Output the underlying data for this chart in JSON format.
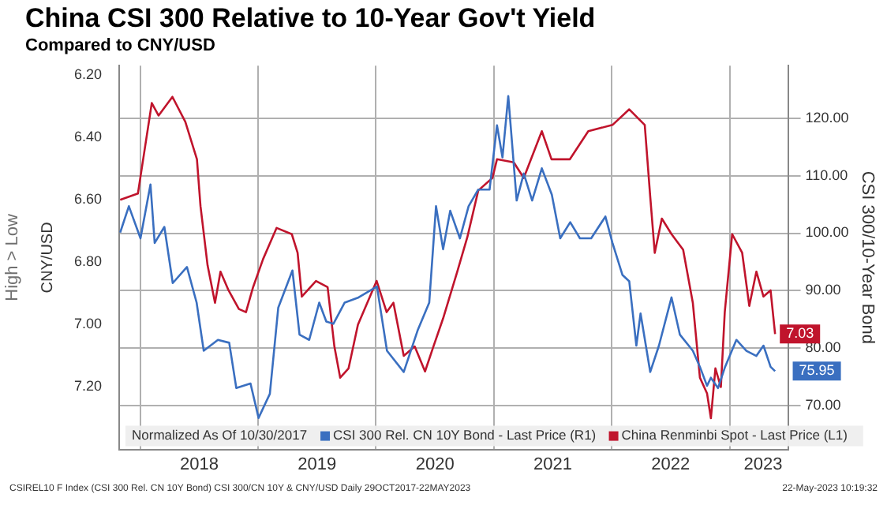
{
  "chart_data": {
    "type": "line",
    "title": "China CSI 300 Relative to 10-Year Gov't Yield",
    "subtitle": "Compared to CNY/USD",
    "ylabel": "CNY/USD",
    "y2label": "CSI 300/10-Year Bond",
    "legend_title": "Normalized As Of 10/30/2017",
    "legend": "bottom",
    "grid": true,
    "xlim": [
      "2017-10-27",
      "2023-07-01"
    ],
    "xticks": [
      {
        "value": "2018-01-01",
        "label": null
      },
      {
        "value": "2018-07-02",
        "label": "2018"
      },
      {
        "value": "2019-01-01",
        "label": null
      },
      {
        "value": "2019-07-02",
        "label": "2019"
      },
      {
        "value": "2020-01-01",
        "label": null
      },
      {
        "value": "2020-07-02",
        "label": "2020"
      },
      {
        "value": "2021-01-01",
        "label": null
      },
      {
        "value": "2021-07-02",
        "label": "2021"
      },
      {
        "value": "2022-01-01",
        "label": null
      },
      {
        "value": "2022-07-02",
        "label": "2022"
      },
      {
        "value": "2023-01-01",
        "label": null
      },
      {
        "value": "2023-04-15",
        "label": "2023"
      }
    ],
    "ylim": [
      7.4,
      6.17
    ],
    "yticks": [
      {
        "value": 6.2,
        "label": "6.20"
      },
      {
        "value": 6.4,
        "label": "6.40"
      },
      {
        "value": 6.6,
        "label": "6.60"
      },
      {
        "value": 6.8,
        "label": "6.80"
      },
      {
        "value": 7.0,
        "label": "7.00"
      },
      {
        "value": 7.2,
        "label": "7.20"
      }
    ],
    "y2lim": [
      62.3,
      129.2
    ],
    "y2ticks": [
      {
        "value": 70,
        "label": "70.00"
      },
      {
        "value": 80,
        "label": "80.00"
      },
      {
        "value": 90,
        "label": "90.00"
      },
      {
        "value": 100,
        "label": "100.00"
      },
      {
        "value": 110,
        "label": "110.00"
      },
      {
        "value": 120,
        "label": "120.00"
      }
    ],
    "annotations": [
      "High > Low",
      "CSIREL10 F Index (CSI 300 Rel. CN 10Y Bond) CSI 300/CN 10Y & CNY/USD Daily 29OCT2017-22MAY2023",
      "22-May-2023 10:19:32"
    ],
    "series": [
      {
        "name": "CSI 300 Rel. CN 10Y Bond - Last Price (R1)",
        "color": "#3a6fc0",
        "axis": "y2",
        "x": [
          "2017-10-30",
          "2017-11-26",
          "2018-01-01",
          "2018-02-01",
          "2018-02-14",
          "2018-03-16",
          "2018-04-11",
          "2018-05-25",
          "2018-06-24",
          "2018-07-16",
          "2018-08-29",
          "2018-10-03",
          "2018-10-25",
          "2018-12-08",
          "2019-01-02",
          "2019-02-06",
          "2019-03-04",
          "2019-04-17",
          "2019-05-09",
          "2019-06-08",
          "2019-07-09",
          "2019-07-31",
          "2019-08-22",
          "2019-09-26",
          "2019-11-08",
          "2020-01-04",
          "2020-02-04",
          "2020-03-27",
          "2020-05-10",
          "2020-06-14",
          "2020-07-05",
          "2020-07-27",
          "2020-08-18",
          "2020-09-17",
          "2020-10-14",
          "2020-11-13",
          "2020-12-18",
          "2021-01-10",
          "2021-01-27",
          "2021-02-14",
          "2021-03-12",
          "2021-04-03",
          "2021-04-29",
          "2021-05-29",
          "2021-06-29",
          "2021-07-25",
          "2021-08-25",
          "2021-09-24",
          "2021-10-29",
          "2021-12-12",
          "2022-01-03",
          "2022-02-03",
          "2022-02-24",
          "2022-03-18",
          "2022-03-31",
          "2022-04-30",
          "2022-05-27",
          "2022-07-05",
          "2022-07-31",
          "2022-09-09",
          "2022-10-01",
          "2022-10-23",
          "2022-11-04",
          "2022-11-26",
          "2022-12-18",
          "2023-01-22",
          "2023-02-22",
          "2023-03-25",
          "2023-04-16",
          "2023-05-08",
          "2023-05-22"
        ],
        "values": [
          100.1,
          104.7,
          99.1,
          108.5,
          98.3,
          101.1,
          91.3,
          94.1,
          87.9,
          79.5,
          81.4,
          80.9,
          73.0,
          73.8,
          67.8,
          72.0,
          87.0,
          93.5,
          82.3,
          81.4,
          87.9,
          84.6,
          84.2,
          87.9,
          88.8,
          90.7,
          79.5,
          75.8,
          83.2,
          87.9,
          104.7,
          97.2,
          103.9,
          99.1,
          104.7,
          107.6,
          107.6,
          118.8,
          113.2,
          123.9,
          105.7,
          110.4,
          105.7,
          111.3,
          106.7,
          99.1,
          101.9,
          99.1,
          99.1,
          102.9,
          98.3,
          92.7,
          91.6,
          80.4,
          86.0,
          75.8,
          80.4,
          88.8,
          82.3,
          79.5,
          76.7,
          73.4,
          74.8,
          73.0,
          76.7,
          81.4,
          79.5,
          78.6,
          80.4,
          76.7,
          75.95
        ],
        "value_labels": [
          null,
          null,
          null,
          null,
          null,
          null,
          null,
          null,
          null,
          null,
          null,
          null,
          null,
          null,
          null,
          null,
          null,
          null,
          null,
          null,
          null,
          null,
          null,
          null,
          null,
          null,
          null,
          null,
          null,
          null,
          null,
          null,
          null,
          null,
          null,
          null,
          null,
          null,
          null,
          null,
          null,
          null,
          null,
          null,
          null,
          null,
          null,
          null,
          null,
          null,
          null,
          null,
          null,
          null,
          null,
          null,
          null,
          null,
          null,
          null,
          null,
          null,
          null,
          null,
          null,
          null,
          null,
          null,
          null,
          null,
          "75.95"
        ]
      },
      {
        "name": "China Renminbi Spot - Last Price (L1)",
        "color": "#c0142c",
        "x": [
          "2017-10-30",
          "2017-12-24",
          "2018-02-05",
          "2018-02-26",
          "2018-04-10",
          "2018-05-20",
          "2018-06-25",
          "2018-07-06",
          "2018-07-28",
          "2018-08-20",
          "2018-09-06",
          "2018-10-01",
          "2018-11-02",
          "2018-11-24",
          "2018-12-16",
          "2019-01-16",
          "2019-02-06",
          "2019-02-27",
          "2019-04-15",
          "2019-05-03",
          "2019-05-16",
          "2019-06-29",
          "2019-08-04",
          "2019-08-25",
          "2019-09-12",
          "2019-10-08",
          "2019-11-06",
          "2020-01-03",
          "2020-02-03",
          "2020-02-24",
          "2020-03-27",
          "2020-04-30",
          "2020-06-01",
          "2020-06-27",
          "2020-07-27",
          "2020-09-09",
          "2020-10-10",
          "2020-11-13",
          "2020-12-27",
          "2021-01-10",
          "2021-03-03",
          "2021-04-03",
          "2021-05-29",
          "2021-06-28",
          "2021-08-24",
          "2021-10-20",
          "2022-01-03",
          "2022-02-24",
          "2022-04-13",
          "2022-04-30",
          "2022-05-14",
          "2022-06-05",
          "2022-07-05",
          "2022-08-10",
          "2022-09-09",
          "2022-10-01",
          "2022-10-23",
          "2022-11-04",
          "2022-11-18",
          "2022-12-05",
          "2022-12-17",
          "2023-01-09",
          "2023-02-09",
          "2023-03-03",
          "2023-03-25",
          "2023-04-16",
          "2023-05-08",
          "2023-05-22"
        ],
        "values": [
          6.6,
          6.58,
          6.29,
          6.33,
          6.27,
          6.35,
          6.47,
          6.62,
          6.81,
          6.93,
          6.83,
          6.89,
          6.95,
          6.96,
          6.88,
          6.79,
          6.74,
          6.69,
          6.71,
          6.77,
          6.91,
          6.86,
          6.88,
          7.07,
          7.17,
          7.14,
          7.0,
          6.86,
          6.96,
          6.93,
          7.1,
          7.07,
          7.15,
          7.07,
          6.98,
          6.83,
          6.72,
          6.57,
          6.53,
          6.47,
          6.48,
          6.53,
          6.38,
          6.47,
          6.47,
          6.38,
          6.36,
          6.31,
          6.36,
          6.59,
          6.77,
          6.66,
          6.71,
          6.76,
          6.93,
          7.17,
          7.22,
          7.3,
          7.14,
          7.2,
          6.96,
          6.71,
          6.77,
          6.94,
          6.83,
          6.91,
          6.89,
          7.03
        ],
        "value_labels": [
          null,
          null,
          null,
          null,
          null,
          null,
          null,
          null,
          null,
          null,
          null,
          null,
          null,
          null,
          null,
          null,
          null,
          null,
          null,
          null,
          null,
          null,
          null,
          null,
          null,
          null,
          null,
          null,
          null,
          null,
          null,
          null,
          null,
          null,
          null,
          null,
          null,
          null,
          null,
          null,
          null,
          null,
          null,
          null,
          null,
          null,
          null,
          null,
          null,
          null,
          null,
          null,
          null,
          null,
          null,
          null,
          null,
          null,
          null,
          null,
          null,
          null,
          null,
          null,
          null,
          null,
          null,
          "7.03"
        ]
      }
    ]
  }
}
